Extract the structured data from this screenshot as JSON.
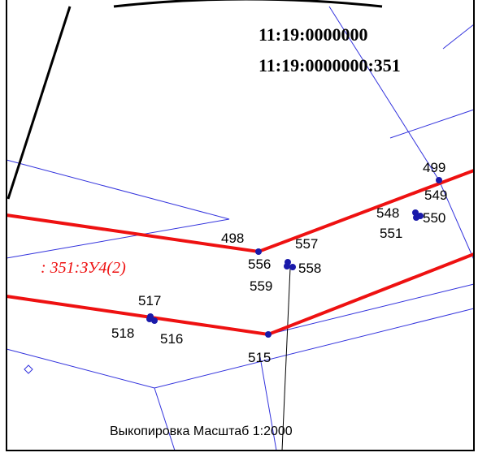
{
  "cadastral": {
    "quarter": "11:19:0000000",
    "parcel": "11:19:0000000:351"
  },
  "parcel_label": ": 351:ЗУ4(2)",
  "points": [
    "499",
    "549",
    "548",
    "550",
    "551",
    "498",
    "557",
    "556",
    "558",
    "559",
    "517",
    "518",
    "516",
    "515"
  ],
  "caption": "Выкопировка Масштаб 1:2000"
}
